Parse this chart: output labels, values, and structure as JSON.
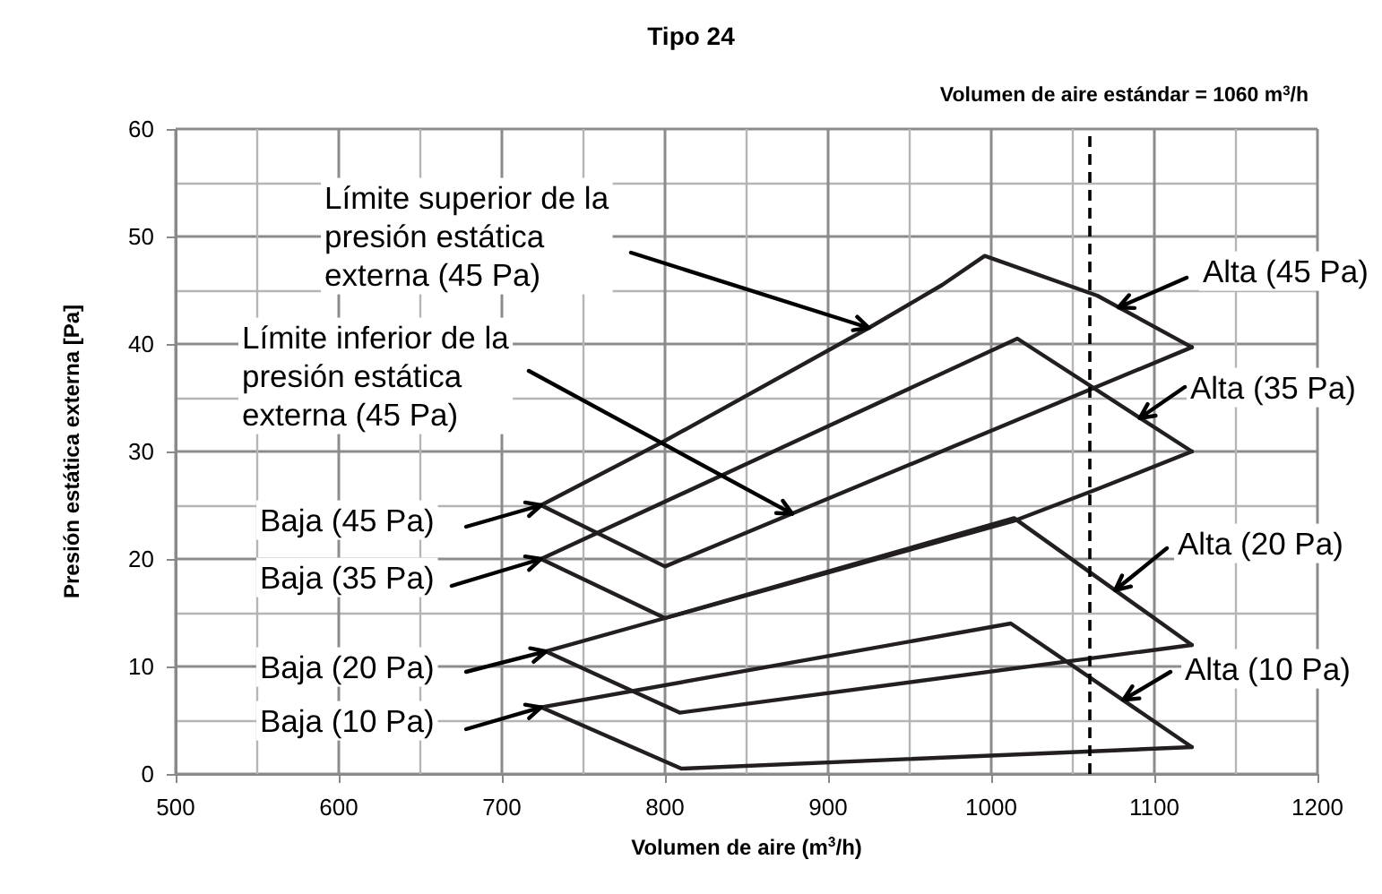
{
  "chart_data": {
    "type": "line",
    "title": "Tipo 24",
    "xlabel": "Volumen de aire (m$^{3}$/h)",
    "ylabel": "Presión estática externa [Pa]",
    "series": [
      {
        "color": "#231f20",
        "x": [
          724,
          800,
          925,
          970,
          996,
          1065,
          1123
        ],
        "values": [
          25,
          31,
          41.5,
          45.5,
          48.2,
          44.5,
          39.7
        ]
      },
      {
        "color": "#231f20",
        "x": [
          724,
          800,
          1123
        ],
        "values": [
          25,
          19.3,
          39.7
        ]
      },
      {
        "color": "#231f20",
        "x": [
          724,
          1016,
          1123
        ],
        "values": [
          20,
          40.5,
          30
        ]
      },
      {
        "color": "#231f20",
        "x": [
          724,
          800,
          1015,
          1065,
          1123
        ],
        "values": [
          20,
          14.5,
          23.6,
          26.5,
          30
        ]
      },
      {
        "color": "#231f20",
        "x": [
          727,
          800,
          1014,
          1123
        ],
        "values": [
          11.4,
          14.5,
          23.8,
          12
        ]
      },
      {
        "color": "#231f20",
        "x": [
          727,
          809,
          1123
        ],
        "values": [
          11.4,
          5.7,
          12
        ]
      },
      {
        "color": "#231f20",
        "x": [
          724,
          1012,
          1123
        ],
        "values": [
          6.2,
          14,
          2.5
        ]
      },
      {
        "color": "#231f20",
        "x": [
          724,
          810,
          1123
        ],
        "values": [
          6.2,
          0.5,
          2.5
        ]
      }
    ],
    "xlim": [
      500,
      1200
    ],
    "xticks": [
      500,
      600,
      700,
      800,
      900,
      1000,
      1100,
      1200
    ],
    "ylim": [
      0,
      60
    ],
    "yticks": [
      0,
      10,
      20,
      30,
      40,
      50,
      60
    ],
    "grid": true,
    "marker": "none",
    "line_style": "solid",
    "ref_lines": [
      {
        "axis": "x",
        "value": 1060,
        "label": "Volumen de aire estándar = 1060 m$^{3}$/h",
        "color": "#000000",
        "line_style": "dashed"
      }
    ],
    "annotations": [
      {
        "text": "Límite superior de la\npresión estática\nexterna (45 Pa)",
        "x": 925,
        "y": 41.5
      },
      {
        "text": "Límite inferior de la\npresión estática\nexterna (45 Pa)",
        "x": 878,
        "y": 24.2
      },
      {
        "text": "Alta (45 Pa)",
        "x": 1078,
        "y": 43.4
      },
      {
        "text": "Alta (35 Pa)",
        "x": 1091,
        "y": 33.1
      },
      {
        "text": "Alta (20 Pa)",
        "x": 1076,
        "y": 17.1
      },
      {
        "text": "Alta (10 Pa)",
        "x": 1081,
        "y": 6.9
      },
      {
        "text": "Baja (45 Pa)",
        "x": 724,
        "y": 25
      },
      {
        "text": "Baja (35 Pa)",
        "x": 724,
        "y": 20
      },
      {
        "text": "Baja (20 Pa)",
        "x": 727,
        "y": 11.4
      },
      {
        "text": "Baja (10 Pa)",
        "x": 724,
        "y": 6.2
      }
    ]
  }
}
